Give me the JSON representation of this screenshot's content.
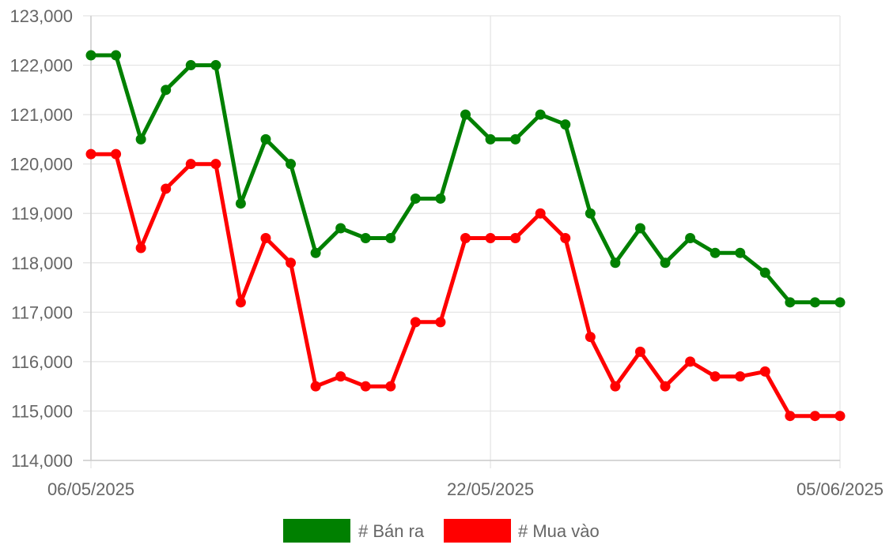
{
  "chart_data": {
    "type": "line",
    "x": [
      "06/05/2025",
      "07/05/2025",
      "08/05/2025",
      "09/05/2025",
      "10/05/2025",
      "11/05/2025",
      "12/05/2025",
      "13/05/2025",
      "14/05/2025",
      "15/05/2025",
      "16/05/2025",
      "17/05/2025",
      "18/05/2025",
      "19/05/2025",
      "20/05/2025",
      "21/05/2025",
      "22/05/2025",
      "23/05/2025",
      "24/05/2025",
      "25/05/2025",
      "26/05/2025",
      "27/05/2025",
      "28/05/2025",
      "29/05/2025",
      "30/05/2025",
      "31/05/2025",
      "01/06/2025",
      "02/06/2025",
      "03/06/2025",
      "04/06/2025",
      "05/06/2025"
    ],
    "x_tick_labels": [
      "06/05/2025",
      "22/05/2025",
      "05/06/2025"
    ],
    "x_tick_indices": [
      0,
      16,
      30
    ],
    "ylim": [
      114000,
      123000
    ],
    "y_ticks": [
      114000,
      115000,
      116000,
      117000,
      118000,
      119000,
      120000,
      121000,
      122000,
      123000
    ],
    "y_tick_labels": [
      "114,000",
      "115,000",
      "116,000",
      "117,000",
      "118,000",
      "119,000",
      "120,000",
      "121,000",
      "122,000",
      "123,000"
    ],
    "grid": true,
    "legend_position": "bottom",
    "series": [
      {
        "name": "# Bán ra",
        "color": "#008000",
        "values": [
          122200,
          122200,
          120500,
          121500,
          122000,
          122000,
          119200,
          120500,
          120000,
          118200,
          118700,
          118500,
          118500,
          119300,
          119300,
          121000,
          120500,
          120500,
          121000,
          120800,
          119000,
          118000,
          118700,
          118000,
          118500,
          118200,
          118200,
          117800,
          117200,
          117200,
          117200
        ]
      },
      {
        "name": "# Mua vào",
        "color": "#ff0000",
        "values": [
          120200,
          120200,
          118300,
          119500,
          120000,
          120000,
          117200,
          118500,
          118000,
          115500,
          115700,
          115500,
          115500,
          116800,
          116800,
          118500,
          118500,
          118500,
          119000,
          118500,
          116500,
          115500,
          116200,
          115500,
          116000,
          115700,
          115700,
          115800,
          114900,
          114900,
          114900
        ]
      }
    ]
  }
}
